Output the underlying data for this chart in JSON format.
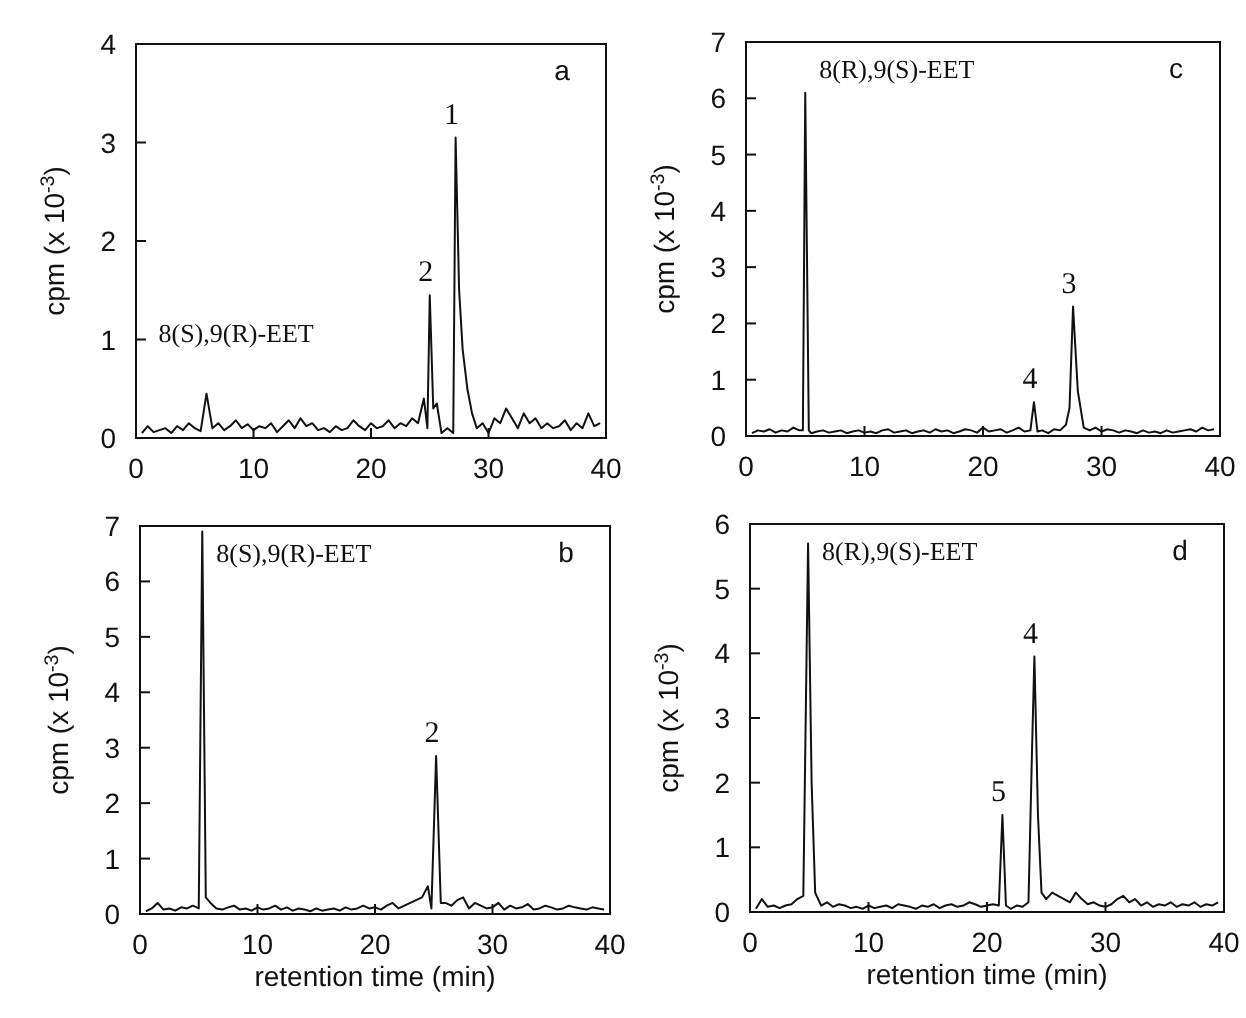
{
  "chart_data": [
    {
      "type": "line",
      "ylabel": "cpm (x 10$^{-3}$)",
      "xlim": [
        0,
        40
      ],
      "xticks": [
        0,
        10,
        20,
        30,
        40
      ],
      "ylim": [
        0,
        4
      ],
      "yticks": [
        0,
        1,
        2,
        3,
        4
      ],
      "marker": "none",
      "line_style": "solid",
      "series": [
        {
          "color": "#111111",
          "x": [
            0.5,
            1,
            1.5,
            2,
            2.5,
            3,
            3.5,
            4,
            4.5,
            5,
            5.5,
            6,
            6.5,
            7,
            7.5,
            8,
            8.5,
            9,
            9.5,
            10,
            10.5,
            11,
            11.5,
            12,
            12.5,
            13,
            13.5,
            14,
            14.5,
            15,
            15.5,
            16,
            16.5,
            17,
            17.5,
            18,
            18.5,
            19,
            19.5,
            20,
            20.5,
            21,
            21.5,
            22,
            22.5,
            23,
            23.5,
            24,
            24.5,
            24.8,
            25,
            25.3,
            25.6,
            26,
            26.5,
            27,
            27.2,
            27.5,
            27.8,
            28.2,
            28.6,
            29,
            29.5,
            30,
            30.5,
            31,
            31.5,
            32,
            32.5,
            33,
            33.5,
            34,
            34.5,
            35,
            35.5,
            36,
            36.5,
            37,
            37.5,
            38,
            38.5,
            39,
            39.5
          ],
          "values": [
            0.05,
            0.12,
            0.06,
            0.08,
            0.1,
            0.05,
            0.12,
            0.08,
            0.15,
            0.1,
            0.07,
            0.45,
            0.1,
            0.15,
            0.08,
            0.12,
            0.18,
            0.1,
            0.14,
            0.08,
            0.12,
            0.1,
            0.15,
            0.06,
            0.12,
            0.18,
            0.1,
            0.2,
            0.12,
            0.15,
            0.08,
            0.1,
            0.06,
            0.12,
            0.08,
            0.1,
            0.18,
            0.12,
            0.08,
            0.15,
            0.1,
            0.12,
            0.18,
            0.1,
            0.15,
            0.12,
            0.2,
            0.15,
            0.4,
            0.1,
            1.45,
            0.3,
            0.35,
            0.05,
            0.1,
            0.05,
            3.05,
            1.5,
            0.9,
            0.5,
            0.25,
            0.1,
            0.15,
            0.05,
            0.2,
            0.15,
            0.3,
            0.2,
            0.1,
            0.25,
            0.15,
            0.2,
            0.1,
            0.15,
            0.1,
            0.12,
            0.18,
            0.08,
            0.15,
            0.1,
            0.25,
            0.12,
            0.15
          ]
        }
      ],
      "annotations": [
        "a",
        {
          "text": "8(S),9(R)-EET",
          "x": 6,
          "y": 0.45
        },
        {
          "text": "2",
          "x": 25,
          "y": 1.45
        },
        {
          "text": "1",
          "x": 27.2,
          "y": 3.05
        }
      ]
    },
    {
      "type": "line",
      "ylabel": "cpm (x 10$^{-3}$)",
      "xlim": [
        0,
        40
      ],
      "xticks": [
        0,
        10,
        20,
        30,
        40
      ],
      "ylim": [
        0,
        7
      ],
      "yticks": [
        0,
        1,
        2,
        3,
        4,
        5,
        6,
        7
      ],
      "marker": "none",
      "line_style": "solid",
      "series": [
        {
          "color": "#111111",
          "x": [
            0.5,
            1,
            1.5,
            2,
            2.5,
            3,
            3.5,
            4,
            4.5,
            4.8,
            5,
            5.3,
            5.5,
            6,
            6.5,
            7,
            7.5,
            8,
            8.5,
            9,
            9.5,
            10,
            10.5,
            11,
            11.5,
            12,
            12.5,
            13,
            13.5,
            14,
            14.5,
            15,
            15.5,
            16,
            16.5,
            17,
            17.5,
            18,
            18.5,
            19,
            19.5,
            20,
            20.5,
            21,
            21.5,
            22,
            22.5,
            23,
            23.5,
            24,
            24.3,
            24.6,
            25,
            25.5,
            26,
            26.5,
            27,
            27.3,
            27.6,
            28,
            28.5,
            29,
            29.5,
            30,
            30.5,
            31,
            31.5,
            32,
            32.5,
            33,
            33.5,
            34,
            34.5,
            35,
            35.5,
            36,
            36.5,
            37,
            37.5,
            38,
            38.5,
            39,
            39.5
          ],
          "values": [
            0.05,
            0.1,
            0.08,
            0.12,
            0.06,
            0.1,
            0.08,
            0.15,
            0.1,
            0.1,
            6.1,
            0.1,
            0.05,
            0.08,
            0.1,
            0.06,
            0.08,
            0.1,
            0.05,
            0.08,
            0.1,
            0.06,
            0.08,
            0.05,
            0.1,
            0.12,
            0.06,
            0.08,
            0.1,
            0.05,
            0.08,
            0.1,
            0.06,
            0.12,
            0.08,
            0.1,
            0.05,
            0.08,
            0.12,
            0.1,
            0.06,
            0.15,
            0.08,
            0.1,
            0.12,
            0.06,
            0.1,
            0.15,
            0.08,
            0.1,
            0.6,
            0.08,
            0.1,
            0.05,
            0.12,
            0.1,
            0.2,
            0.5,
            2.3,
            0.8,
            0.15,
            0.1,
            0.15,
            0.08,
            0.12,
            0.1,
            0.06,
            0.1,
            0.08,
            0.05,
            0.1,
            0.06,
            0.08,
            0.05,
            0.1,
            0.06,
            0.08,
            0.1,
            0.12,
            0.08,
            0.15,
            0.1,
            0.12
          ]
        }
      ],
      "annotations": [
        "c",
        {
          "text": "8(R),9(S)-EET",
          "x": 5,
          "y": 6.1
        },
        {
          "text": "4",
          "x": 24.3,
          "y": 0.6
        },
        {
          "text": "3",
          "x": 27.6,
          "y": 2.3
        }
      ]
    },
    {
      "type": "line",
      "xlabel": "retention time (min)",
      "ylabel": "cpm (x 10$^{-3}$)",
      "xlim": [
        0,
        40
      ],
      "xticks": [
        0,
        10,
        20,
        30,
        40
      ],
      "ylim": [
        0,
        7
      ],
      "yticks": [
        0,
        1,
        2,
        3,
        4,
        5,
        6,
        7
      ],
      "marker": "none",
      "line_style": "solid",
      "series": [
        {
          "color": "#111111",
          "x": [
            0.5,
            1,
            1.5,
            2,
            2.5,
            3,
            3.5,
            4,
            4.5,
            5,
            5.3,
            5.6,
            6,
            6.5,
            7,
            7.5,
            8,
            8.5,
            9,
            9.5,
            10,
            10.5,
            11,
            11.5,
            12,
            12.5,
            13,
            13.5,
            14,
            14.5,
            15,
            15.5,
            16,
            16.5,
            17,
            17.5,
            18,
            18.5,
            19,
            19.5,
            20,
            20.5,
            21,
            21.5,
            22,
            22.5,
            23,
            23.5,
            24,
            24.5,
            24.8,
            25.2,
            25.6,
            26,
            26.5,
            27,
            27.5,
            28,
            28.5,
            29,
            29.5,
            30,
            30.5,
            31,
            31.5,
            32,
            32.5,
            33,
            33.5,
            34,
            34.5,
            35,
            35.5,
            36,
            36.5,
            37,
            37.5,
            38,
            38.5,
            39,
            39.5
          ],
          "values": [
            0.05,
            0.1,
            0.2,
            0.08,
            0.1,
            0.06,
            0.12,
            0.1,
            0.15,
            0.1,
            6.9,
            0.3,
            0.2,
            0.1,
            0.08,
            0.12,
            0.15,
            0.08,
            0.1,
            0.06,
            0.12,
            0.08,
            0.1,
            0.15,
            0.08,
            0.12,
            0.06,
            0.1,
            0.08,
            0.05,
            0.1,
            0.06,
            0.08,
            0.1,
            0.06,
            0.12,
            0.08,
            0.1,
            0.15,
            0.1,
            0.12,
            0.08,
            0.15,
            0.2,
            0.1,
            0.15,
            0.2,
            0.25,
            0.3,
            0.5,
            0.1,
            2.85,
            0.2,
            0.2,
            0.15,
            0.25,
            0.3,
            0.1,
            0.2,
            0.15,
            0.1,
            0.12,
            0.2,
            0.08,
            0.15,
            0.1,
            0.12,
            0.18,
            0.08,
            0.1,
            0.15,
            0.12,
            0.08,
            0.1,
            0.15,
            0.12,
            0.1,
            0.08,
            0.12,
            0.1,
            0.08
          ]
        }
      ],
      "annotations": [
        "b",
        {
          "text": "8(S),9(R)-EET",
          "x": 5.3,
          "y": 6.9
        },
        {
          "text": "2",
          "x": 25.2,
          "y": 2.85
        }
      ]
    },
    {
      "type": "line",
      "xlabel": "retention time (min)",
      "ylabel": "cpm (x 10$^{-3}$)",
      "xlim": [
        0,
        40
      ],
      "xticks": [
        0,
        10,
        20,
        30,
        40
      ],
      "ylim": [
        0,
        6
      ],
      "yticks": [
        0,
        1,
        2,
        3,
        4,
        5,
        6
      ],
      "marker": "none",
      "line_style": "solid",
      "series": [
        {
          "color": "#111111",
          "x": [
            0.5,
            1,
            1.5,
            2,
            2.5,
            3,
            3.5,
            4,
            4.5,
            4.9,
            5.2,
            5.5,
            6,
            6.5,
            7,
            7.5,
            8,
            8.5,
            9,
            9.5,
            10,
            10.5,
            11,
            11.5,
            12,
            12.5,
            13,
            13.5,
            14,
            14.5,
            15,
            15.5,
            16,
            16.5,
            17,
            17.5,
            18,
            18.5,
            19,
            19.5,
            20,
            20.5,
            21,
            21.3,
            21.6,
            22,
            22.5,
            23,
            23.5,
            23.8,
            24,
            24.3,
            24.6,
            25,
            25.5,
            26,
            26.5,
            27,
            27.5,
            28,
            28.5,
            29,
            29.5,
            30,
            30.5,
            31,
            31.5,
            32,
            32.5,
            33,
            33.5,
            34,
            34.5,
            35,
            35.5,
            36,
            36.5,
            37,
            37.5,
            38,
            38.5,
            39,
            39.5
          ],
          "values": [
            0.05,
            0.2,
            0.08,
            0.1,
            0.06,
            0.1,
            0.12,
            0.2,
            0.25,
            5.7,
            2.0,
            0.3,
            0.1,
            0.15,
            0.08,
            0.12,
            0.1,
            0.06,
            0.08,
            0.05,
            0.1,
            0.06,
            0.08,
            0.1,
            0.06,
            0.12,
            0.1,
            0.08,
            0.05,
            0.1,
            0.08,
            0.12,
            0.06,
            0.1,
            0.12,
            0.08,
            0.1,
            0.15,
            0.12,
            0.08,
            0.1,
            0.12,
            0.1,
            1.5,
            0.1,
            0.05,
            0.1,
            0.08,
            0.15,
            2.5,
            3.95,
            1.5,
            0.3,
            0.2,
            0.3,
            0.25,
            0.2,
            0.15,
            0.3,
            0.2,
            0.12,
            0.15,
            0.1,
            0.08,
            0.12,
            0.2,
            0.25,
            0.15,
            0.2,
            0.1,
            0.15,
            0.08,
            0.12,
            0.1,
            0.15,
            0.08,
            0.12,
            0.1,
            0.15,
            0.08,
            0.12,
            0.1,
            0.15
          ]
        }
      ],
      "annotations": [
        "d",
        {
          "text": "8(R),9(S)-EET",
          "x": 4.9,
          "y": 5.7
        },
        {
          "text": "5",
          "x": 21.3,
          "y": 1.5
        },
        {
          "text": "4",
          "x": 24,
          "y": 3.95
        }
      ]
    }
  ]
}
